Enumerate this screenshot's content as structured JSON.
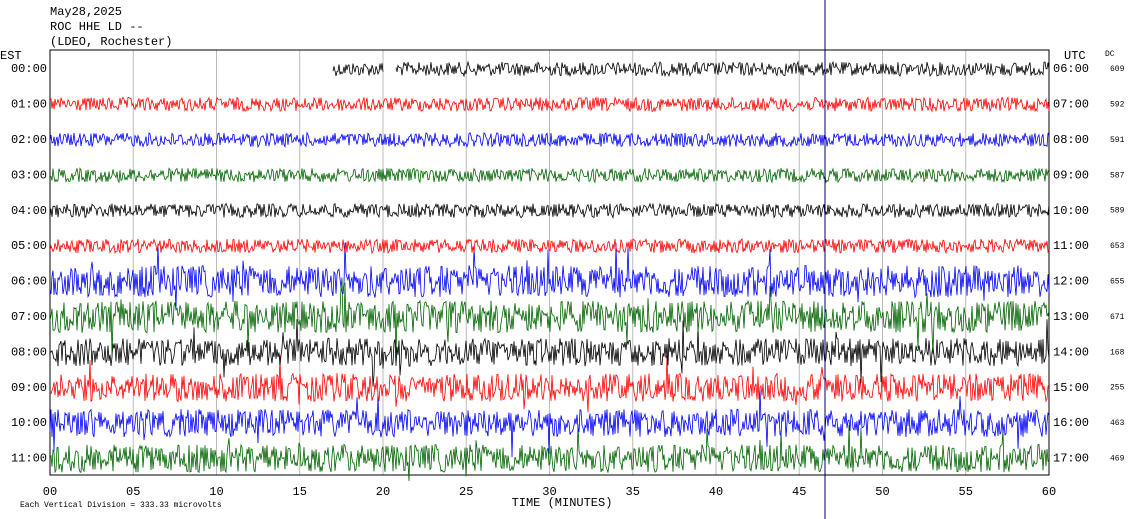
{
  "header": {
    "date": "May28,2025",
    "station": "ROC HHE LD --",
    "network": "(LDEO, Rochester)"
  },
  "left_axis_label": "EST",
  "right_axis_label": "UTC",
  "dc_label": "DC",
  "rows": [
    {
      "est": "00:00",
      "utc": "06:00",
      "dc": "609",
      "color": "#000000"
    },
    {
      "est": "01:00",
      "utc": "07:00",
      "dc": "592",
      "color": "#ff0000"
    },
    {
      "est": "02:00",
      "utc": "08:00",
      "dc": "591",
      "color": "#0000ff"
    },
    {
      "est": "03:00",
      "utc": "09:00",
      "dc": "587",
      "color": "#006400"
    },
    {
      "est": "04:00",
      "utc": "10:00",
      "dc": "589",
      "color": "#000000"
    },
    {
      "est": "05:00",
      "utc": "11:00",
      "dc": "653",
      "color": "#ff0000"
    },
    {
      "est": "06:00",
      "utc": "12:00",
      "dc": "655",
      "color": "#0000ff"
    },
    {
      "est": "07:00",
      "utc": "13:00",
      "dc": "671",
      "color": "#006400"
    },
    {
      "est": "08:00",
      "utc": "14:00",
      "dc": "168",
      "color": "#000000"
    },
    {
      "est": "09:00",
      "utc": "15:00",
      "dc": "255",
      "color": "#ff0000"
    },
    {
      "est": "10:00",
      "utc": "16:00",
      "dc": "463",
      "color": "#0000ff"
    },
    {
      "est": "11:00",
      "utc": "17:00",
      "dc": "469",
      "color": "#006400"
    }
  ],
  "x_ticks": [
    "00",
    "05",
    "10",
    "15",
    "20",
    "25",
    "30",
    "35",
    "40",
    "45",
    "50",
    "55",
    "60"
  ],
  "x_label": "TIME (MINUTES)",
  "footer": "Each Vertical Division = 333.33 microvolts"
}
